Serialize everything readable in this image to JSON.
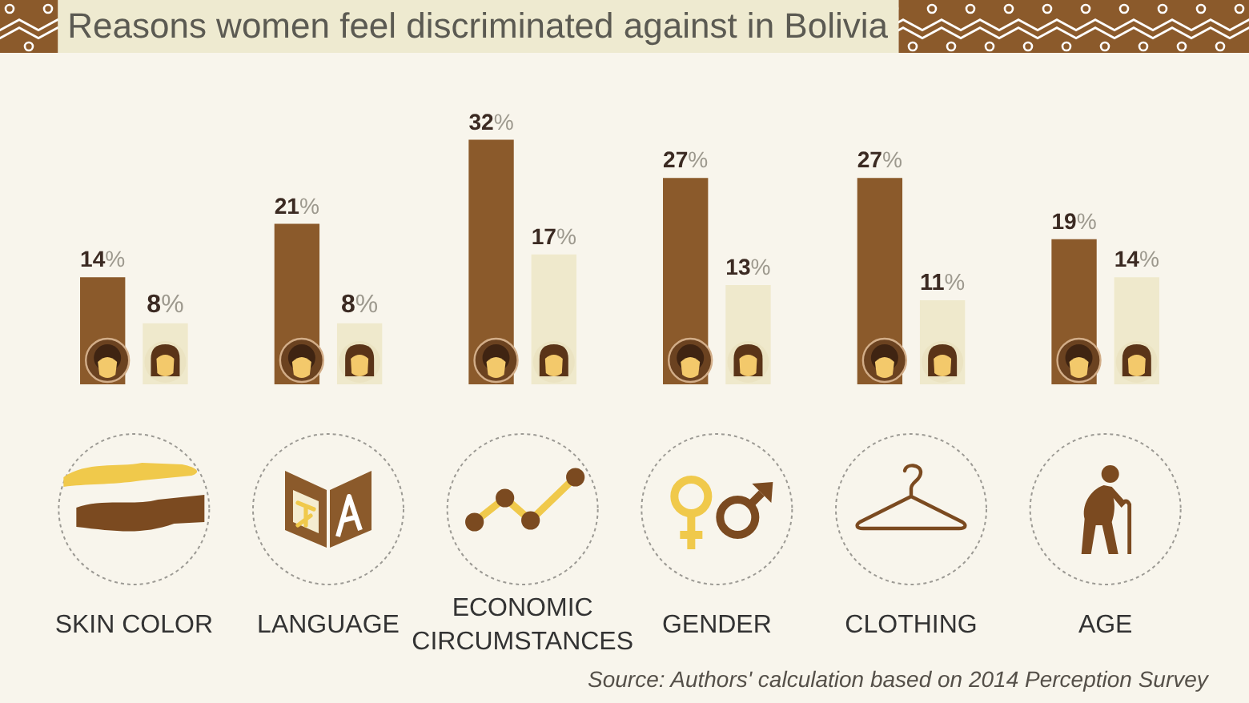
{
  "chart_data": {
    "type": "bar",
    "title": "Reasons women feel discriminated against in Bolivia",
    "categories": [
      "SKIN COLOR",
      "LANGUAGE",
      "ECONOMIC CIRCUMSTANCES",
      "GENDER",
      "CLOTHING",
      "AGE"
    ],
    "series": [
      {
        "color": "#8b5a2b",
        "values": [
          14,
          21,
          32,
          27,
          27,
          19
        ],
        "value_labels": [
          "14%",
          "21%",
          "32%",
          "27%",
          "27%",
          "19%"
        ]
      },
      {
        "color": "#efe9cc",
        "values": [
          8,
          8,
          17,
          13,
          11,
          14
        ],
        "value_labels": [
          "8%",
          "8%",
          "17%",
          "13%",
          "11%",
          "14%"
        ]
      }
    ],
    "tick_labels": "x",
    "annotations": [
      "Source: Authors' calculation based on 2014 Perception Survey"
    ]
  }
}
